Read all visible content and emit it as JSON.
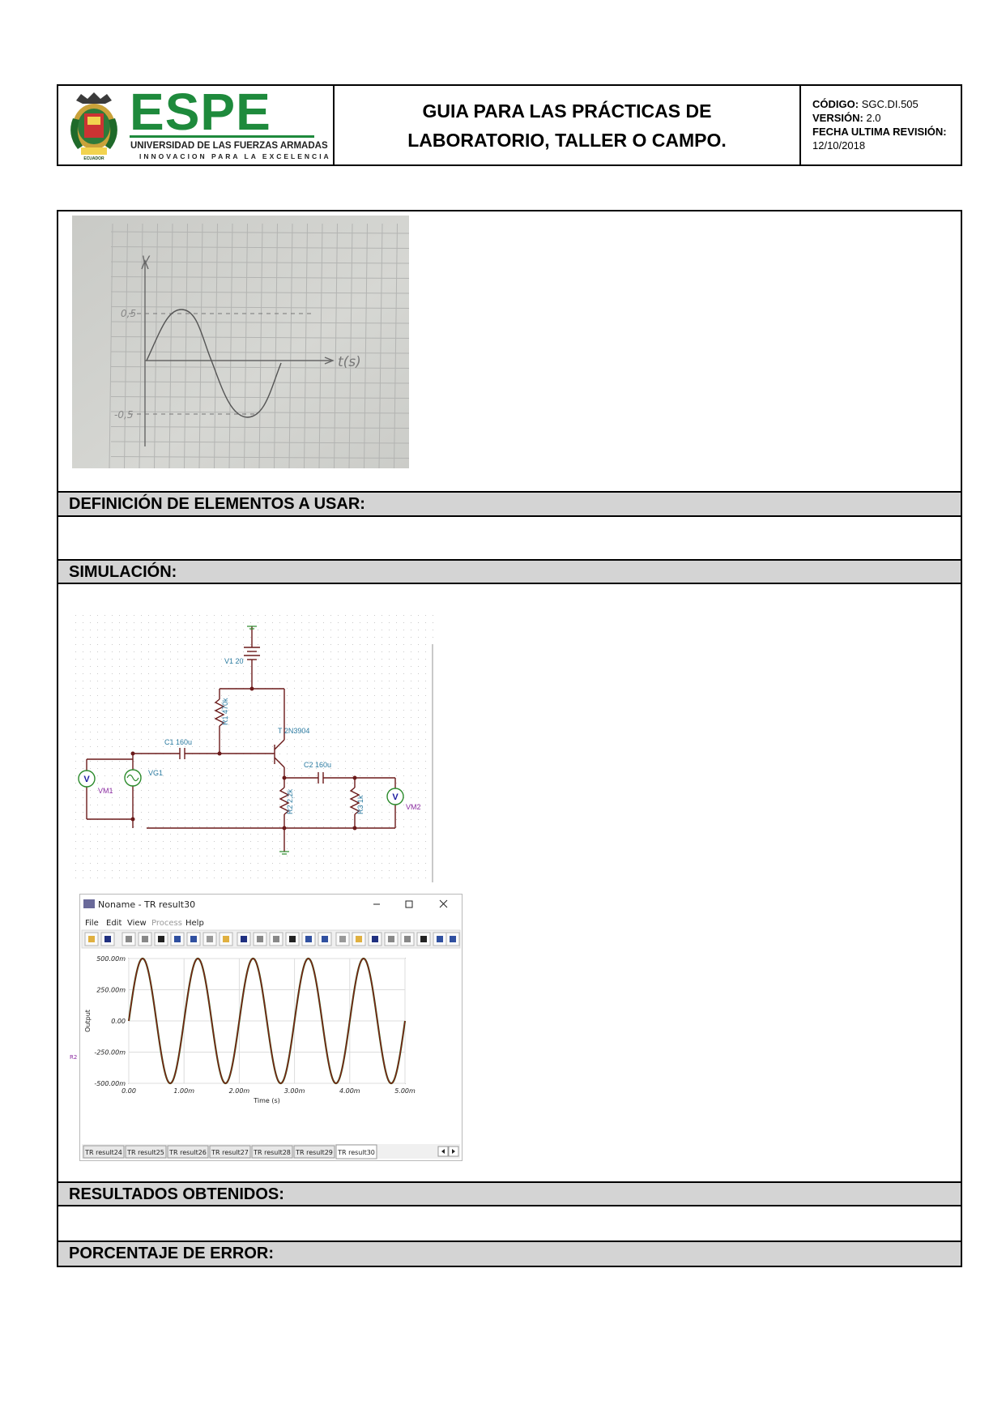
{
  "header": {
    "logo": {
      "brand": "ESPE",
      "university": "UNIVERSIDAD DE LAS FUERZAS ARMADAS",
      "slogan": "INNOVACION PARA LA EXCELENCIA",
      "crest_text": "ECUADOR"
    },
    "title_line1": "GUIA PARA LAS PRÁCTICAS DE",
    "title_line2": "LABORATORIO, TALLER O CAMPO.",
    "code_label": "CÓDIGO:",
    "code_value": "SGC.DI.505",
    "version_label": "VERSIÓN:",
    "version_value": "2.0",
    "revision_label": "FECHA ULTIMA REVISIÓN:",
    "revision_value": "12/10/2018"
  },
  "sketch": {
    "y_axis": "V",
    "x_axis": "t(s)",
    "top_level": "0,5",
    "bottom_level": "-0,5"
  },
  "sections": {
    "elements": "DEFINICIÓN DE ELEMENTOS A USAR:",
    "simulation": "SIMULACIÓN:",
    "results": "RESULTADOS OBTENIDOS:",
    "error": "PORCENTAJE DE ERROR:"
  },
  "circuit": {
    "v1": "V1 20",
    "r1": "R1 470k",
    "transistor": "T 2N3904",
    "c1": "C1 160u",
    "c2": "C2 160u",
    "vg1": "VG1",
    "vm1": "VM1",
    "r2": "R2 2,2k",
    "r3": "R3 1k",
    "vm2": "VM2",
    "meter_symbol": "V"
  },
  "sim_window": {
    "title": "Noname - TR result30",
    "menu": [
      "File",
      "Edit",
      "View",
      "Process",
      "Help"
    ],
    "y_ticks": [
      "500.00m",
      "250.00m",
      "0.00",
      "-250.00m",
      "-500.00m"
    ],
    "x_ticks": [
      "0.00",
      "1.00m",
      "2.00m",
      "3.00m",
      "4.00m",
      "5.00m"
    ],
    "ylabel": "Output",
    "xlabel": "Time (s)",
    "tabs": [
      "TR result24",
      "TR result25",
      "TR result26",
      "TR result27",
      "TR result28",
      "TR result29",
      "TR result30"
    ],
    "side_label": "R2",
    "wave_color": "#7a1f16"
  }
}
